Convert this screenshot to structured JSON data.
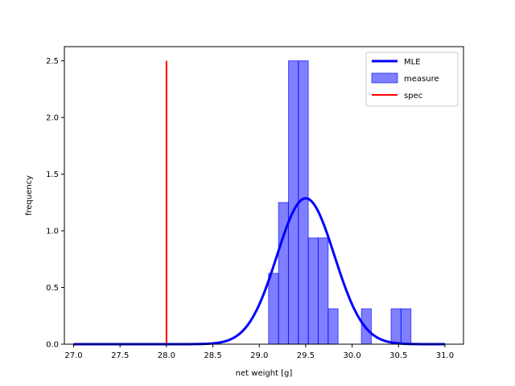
{
  "chart_data": {
    "type": "histogram",
    "xlabel": "net weight [g]",
    "ylabel": "frequency",
    "xlim": [
      26.9,
      31.2
    ],
    "ylim": [
      0,
      2.625
    ],
    "grid": false,
    "legend_placement": "top-right",
    "x_ticks": [
      "27.0",
      "27.5",
      "28.0",
      "28.5",
      "29.0",
      "29.5",
      "30.0",
      "30.5",
      "31.0"
    ],
    "y_ticks": [
      "0.0",
      "0.5",
      "1.0",
      "1.5",
      "2.0",
      "2.5"
    ],
    "series": [
      {
        "name": "MLE",
        "kind": "line",
        "color": "#0000ff",
        "mean": 29.5,
        "std": 0.31,
        "x_range": [
          27.0,
          31.0
        ]
      },
      {
        "name": "measure",
        "kind": "histogram",
        "color": "#0000ff",
        "opacity": 0.5,
        "bin_width": 0.107,
        "bins": [
          {
            "x": 29.1,
            "value": 0.625
          },
          {
            "x": 29.207,
            "value": 1.25
          },
          {
            "x": 29.314,
            "value": 2.5
          },
          {
            "x": 29.421,
            "value": 2.5
          },
          {
            "x": 29.528,
            "value": 0.9375
          },
          {
            "x": 29.635,
            "value": 0.9375
          },
          {
            "x": 29.742,
            "value": 0.3125
          },
          {
            "x": 30.1,
            "value": 0.3125
          },
          {
            "x": 30.42,
            "value": 0.3125
          },
          {
            "x": 30.527,
            "value": 0.3125
          }
        ]
      },
      {
        "name": "spec",
        "kind": "vline",
        "color": "#ff0000",
        "x": 28.0,
        "y_range": [
          0,
          2.5
        ]
      }
    ]
  }
}
